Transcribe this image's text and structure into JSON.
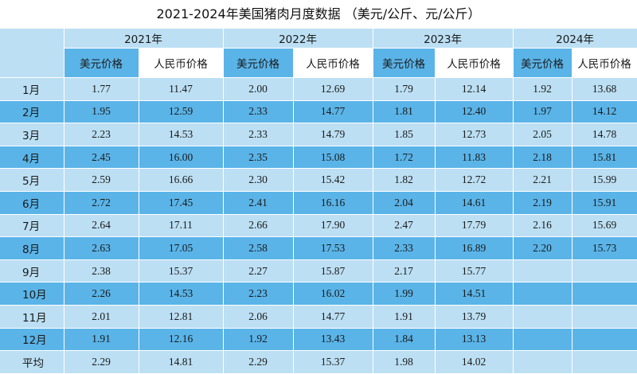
{
  "title": "2021-2024年美国猪肉月度数据 （美元/公斤、元/公斤）",
  "years": [
    "2021年",
    "2022年",
    "2023年",
    "2024年"
  ],
  "subheaders": [
    "美元价格",
    "人民币价格"
  ],
  "rows": [
    {
      "label": "1月",
      "values": [
        "1.77",
        "11.47",
        "2.00",
        "12.69",
        "1.79",
        "12.14",
        "1.92",
        "13.68"
      ]
    },
    {
      "label": "2月",
      "values": [
        "1.95",
        "12.59",
        "2.33",
        "14.77",
        "1.81",
        "12.40",
        "1.97",
        "14.12"
      ]
    },
    {
      "label": "3月",
      "values": [
        "2.23",
        "14.53",
        "2.33",
        "14.79",
        "1.85",
        "12.73",
        "2.05",
        "14.78"
      ]
    },
    {
      "label": "4月",
      "values": [
        "2.45",
        "16.00",
        "2.35",
        "15.08",
        "1.72",
        "11.83",
        "2.18",
        "15.81"
      ]
    },
    {
      "label": "5月",
      "values": [
        "2.59",
        "16.66",
        "2.30",
        "15.42",
        "1.82",
        "12.72",
        "2.21",
        "15.99"
      ]
    },
    {
      "label": "6月",
      "values": [
        "2.72",
        "17.45",
        "2.41",
        "16.16",
        "2.04",
        "14.61",
        "2.19",
        "15.91"
      ]
    },
    {
      "label": "7月",
      "values": [
        "2.64",
        "17.11",
        "2.66",
        "17.90",
        "2.47",
        "17.79",
        "2.16",
        "15.69"
      ]
    },
    {
      "label": "8月",
      "values": [
        "2.63",
        "17.05",
        "2.58",
        "17.53",
        "2.33",
        "16.89",
        "2.20",
        "15.73"
      ]
    },
    {
      "label": "9月",
      "values": [
        "2.38",
        "15.37",
        "2.27",
        "15.87",
        "2.17",
        "15.77",
        "",
        ""
      ]
    },
    {
      "label": "10月",
      "values": [
        "2.26",
        "14.53",
        "2.23",
        "16.02",
        "1.99",
        "14.51",
        "",
        ""
      ]
    },
    {
      "label": "11月",
      "values": [
        "2.01",
        "12.81",
        "2.06",
        "14.77",
        "1.91",
        "13.79",
        "",
        ""
      ]
    },
    {
      "label": "12月",
      "values": [
        "1.91",
        "12.16",
        "1.92",
        "13.43",
        "1.84",
        "13.13",
        "",
        ""
      ]
    },
    {
      "label": "平均",
      "values": [
        "2.29",
        "14.81",
        "2.29",
        "15.37",
        "1.98",
        "14.02",
        "",
        ""
      ]
    }
  ],
  "colors": {
    "light_row": "#bcdff3",
    "dark_row": "#5ab4e8"
  }
}
